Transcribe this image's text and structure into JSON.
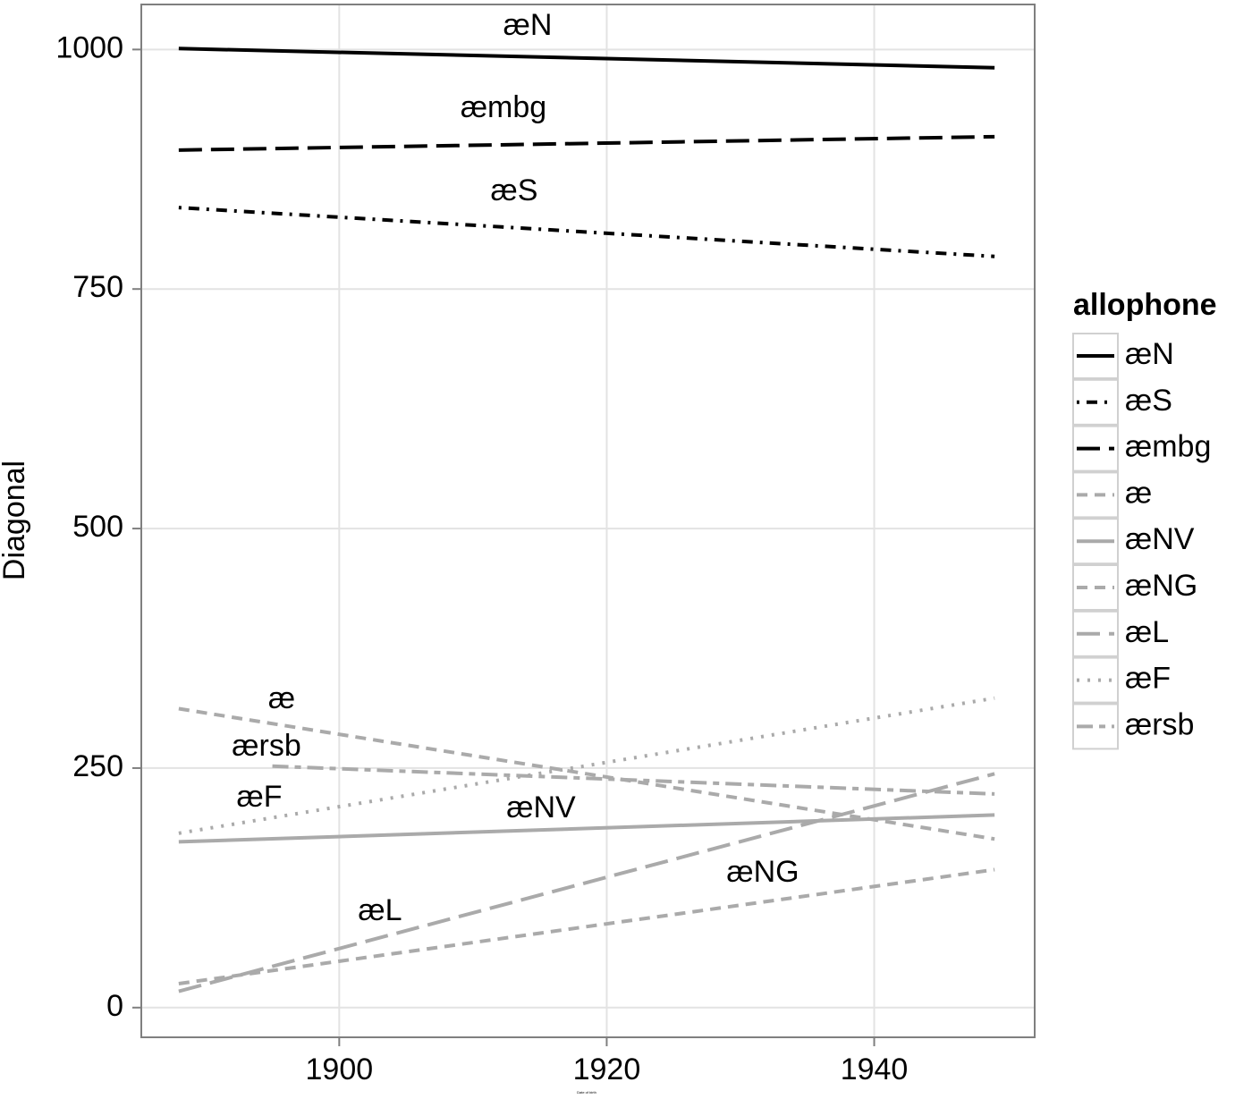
{
  "chart_data": {
    "type": "line",
    "ylabel": "Diagonal",
    "xlabel": "Date of birth",
    "legend_title": "allophone",
    "legend_position": "right",
    "grid": true,
    "xlim": [
      1885.2,
      1952
    ],
    "ylim": [
      -31,
      1047
    ],
    "xticks": [
      1900,
      1920,
      1940
    ],
    "yticks": [
      0,
      250,
      500,
      750,
      1000
    ],
    "series": [
      {
        "name": "æN",
        "color": "#000000",
        "linetype": "solid",
        "x": [
          1888,
          1949
        ],
        "values": [
          1001,
          981
        ]
      },
      {
        "name": "æS",
        "color": "#000000",
        "linetype": "dotdash",
        "x": [
          1888,
          1949
        ],
        "values": [
          835,
          784
        ]
      },
      {
        "name": "æmbg",
        "color": "#000000",
        "linetype": "longdash",
        "x": [
          1888,
          1949
        ],
        "values": [
          895,
          909
        ]
      },
      {
        "name": "æ",
        "color": "#aaaaaa",
        "linetype": "dashed",
        "x": [
          1888,
          1949
        ],
        "values": [
          312,
          176
        ]
      },
      {
        "name": "æNV",
        "color": "#aaaaaa",
        "linetype": "solid",
        "x": [
          1888,
          1949
        ],
        "values": [
          173,
          201
        ]
      },
      {
        "name": "æNG",
        "color": "#aaaaaa",
        "linetype": "dashed",
        "x": [
          1888,
          1949
        ],
        "values": [
          25,
          144
        ]
      },
      {
        "name": "æL",
        "color": "#aaaaaa",
        "linetype": "longdash",
        "x": [
          1888,
          1949
        ],
        "values": [
          17,
          244
        ]
      },
      {
        "name": "æF",
        "color": "#aaaaaa",
        "linetype": "dotted",
        "x": [
          1888,
          1949
        ],
        "values": [
          182,
          323
        ]
      },
      {
        "name": "ærsb",
        "color": "#aaaaaa",
        "linetype": "twodash",
        "x": [
          1895,
          1949
        ],
        "values": [
          252,
          223
        ]
      }
    ]
  }
}
